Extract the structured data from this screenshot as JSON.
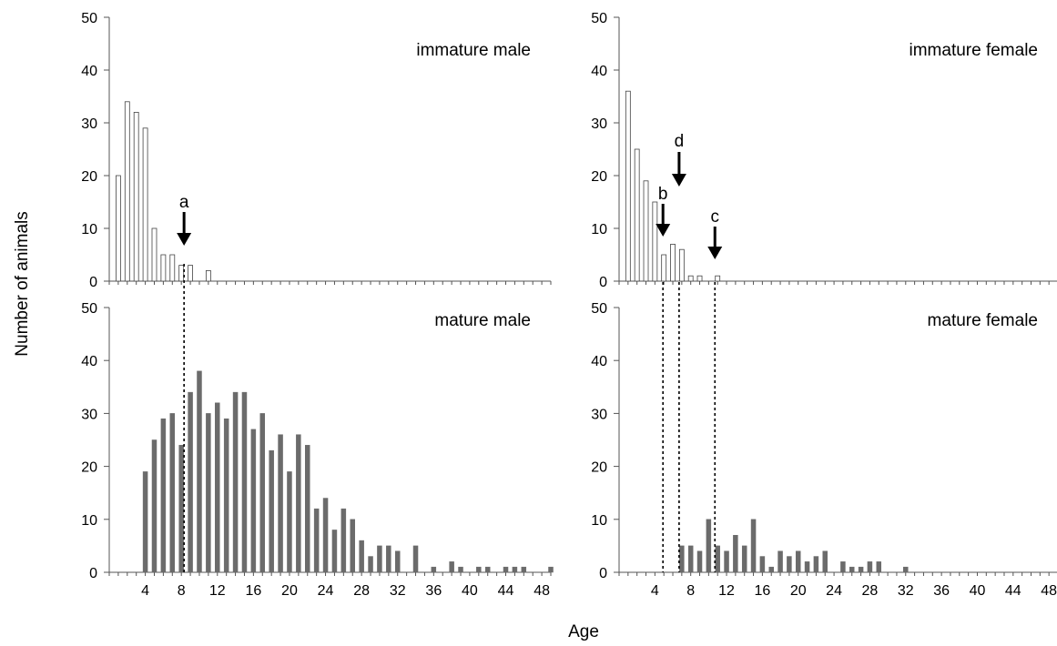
{
  "chart_data": {
    "type": "bar",
    "ylabel": "Number of animals",
    "xlabel": "Age",
    "xlim": [
      0,
      49
    ],
    "ylim": [
      0,
      50
    ],
    "y_ticks": [
      "0",
      "10",
      "20",
      "30",
      "40",
      "50"
    ],
    "x_ticks": [
      "4",
      "8",
      "12",
      "16",
      "20",
      "24",
      "28",
      "32",
      "36",
      "40",
      "44",
      "48"
    ],
    "colors": {
      "immature_bar": "#ffffff",
      "mature_bar": "#6b6b6b",
      "outline": "#555555"
    },
    "panels": [
      {
        "id": "immature-male",
        "title": "immature male",
        "bar_style": "immature",
        "x": [
          1,
          2,
          3,
          4,
          5,
          6,
          7,
          8,
          9,
          10,
          11
        ],
        "values": [
          20,
          34,
          32,
          29,
          10,
          5,
          5,
          3,
          3,
          0,
          2
        ]
      },
      {
        "id": "immature-female",
        "title": "immature female",
        "bar_style": "immature",
        "x": [
          1,
          2,
          3,
          4,
          5,
          6,
          7,
          8,
          9,
          10,
          11
        ],
        "values": [
          36,
          25,
          19,
          15,
          5,
          7,
          6,
          1,
          1,
          0,
          1
        ]
      },
      {
        "id": "mature-male",
        "title": "mature male",
        "bar_style": "mature",
        "x": [
          4,
          5,
          6,
          7,
          8,
          9,
          10,
          11,
          12,
          13,
          14,
          15,
          16,
          17,
          18,
          19,
          20,
          21,
          22,
          23,
          24,
          25,
          26,
          27,
          28,
          29,
          30,
          31,
          32,
          34,
          36,
          38,
          39,
          41,
          42,
          44,
          45,
          46,
          49
        ],
        "values": [
          19,
          25,
          29,
          30,
          24,
          34,
          38,
          30,
          32,
          29,
          34,
          34,
          27,
          30,
          23,
          26,
          19,
          26,
          24,
          12,
          14,
          8,
          12,
          10,
          6,
          3,
          5,
          5,
          4,
          5,
          1,
          2,
          1,
          1,
          1,
          1,
          1,
          1,
          1
        ]
      },
      {
        "id": "mature-female",
        "title": "mature female",
        "bar_style": "mature",
        "x": [
          7,
          8,
          9,
          10,
          11,
          12,
          13,
          14,
          15,
          16,
          17,
          18,
          19,
          20,
          21,
          22,
          23,
          25,
          26,
          27,
          28,
          29,
          32
        ],
        "values": [
          5,
          5,
          4,
          10,
          5,
          4,
          7,
          5,
          10,
          3,
          1,
          4,
          3,
          4,
          2,
          3,
          4,
          2,
          1,
          1,
          2,
          2,
          1
        ]
      }
    ],
    "markers": [
      {
        "label": "a",
        "x": 8.3
      },
      {
        "label": "b",
        "x": 4.9
      },
      {
        "label": "d",
        "x": 6.7
      },
      {
        "label": "c",
        "x": 10.7
      }
    ]
  }
}
